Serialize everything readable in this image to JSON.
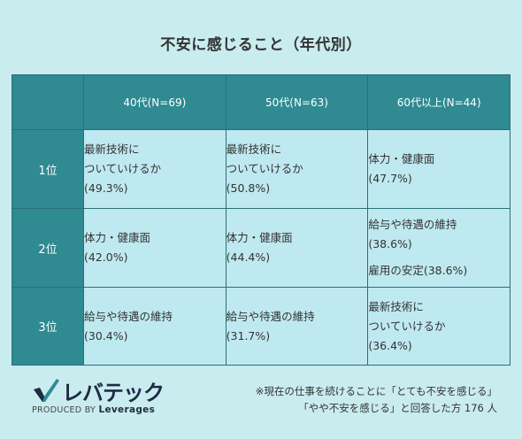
{
  "title": "不安に感じること（年代別）",
  "columns": [
    "40代(N=69)",
    "50代(N=63)",
    "60代以上(N=44)"
  ],
  "rows": [
    {
      "rank": "1位",
      "cells": [
        [
          {
            "text": "最新技術に\nついていけるか",
            "pct": "(49.3%)"
          }
        ],
        [
          {
            "text": "最新技術に\nついていけるか",
            "pct": "(50.8%)"
          }
        ],
        [
          {
            "text": "体力・健康面",
            "pct": "(47.7%)"
          }
        ]
      ]
    },
    {
      "rank": "2位",
      "cells": [
        [
          {
            "text": "体力・健康面",
            "pct": "(42.0%)"
          }
        ],
        [
          {
            "text": "体力・健康面",
            "pct": "(44.4%)"
          }
        ],
        [
          {
            "text": "給与や待遇の維持",
            "pct": "(38.6%)"
          },
          {
            "text": "雇用の安定",
            "pct": "(38.6%)",
            "inline": true
          }
        ]
      ]
    },
    {
      "rank": "3位",
      "cells": [
        [
          {
            "text": "給与や待遇の維持",
            "pct": "(30.4%)"
          }
        ],
        [
          {
            "text": "給与や待遇の維持",
            "pct": "(31.7%)"
          }
        ],
        [
          {
            "text": "最新技術に\nついていけるか",
            "pct": "(36.4%)"
          }
        ]
      ]
    }
  ],
  "logo": {
    "name": "レバテック",
    "produced_by": "PRODUCED BY",
    "company": "Leverages"
  },
  "note": {
    "line1": "※現在の仕事を続けることに「とても不安を感じる」",
    "line2": "「やや不安を感じる」と回答した方 176 人"
  },
  "colors": {
    "background": "#c9ecef",
    "header": "#2f8a92",
    "cell": "#bfe9f0",
    "border": "#2b6f78"
  }
}
